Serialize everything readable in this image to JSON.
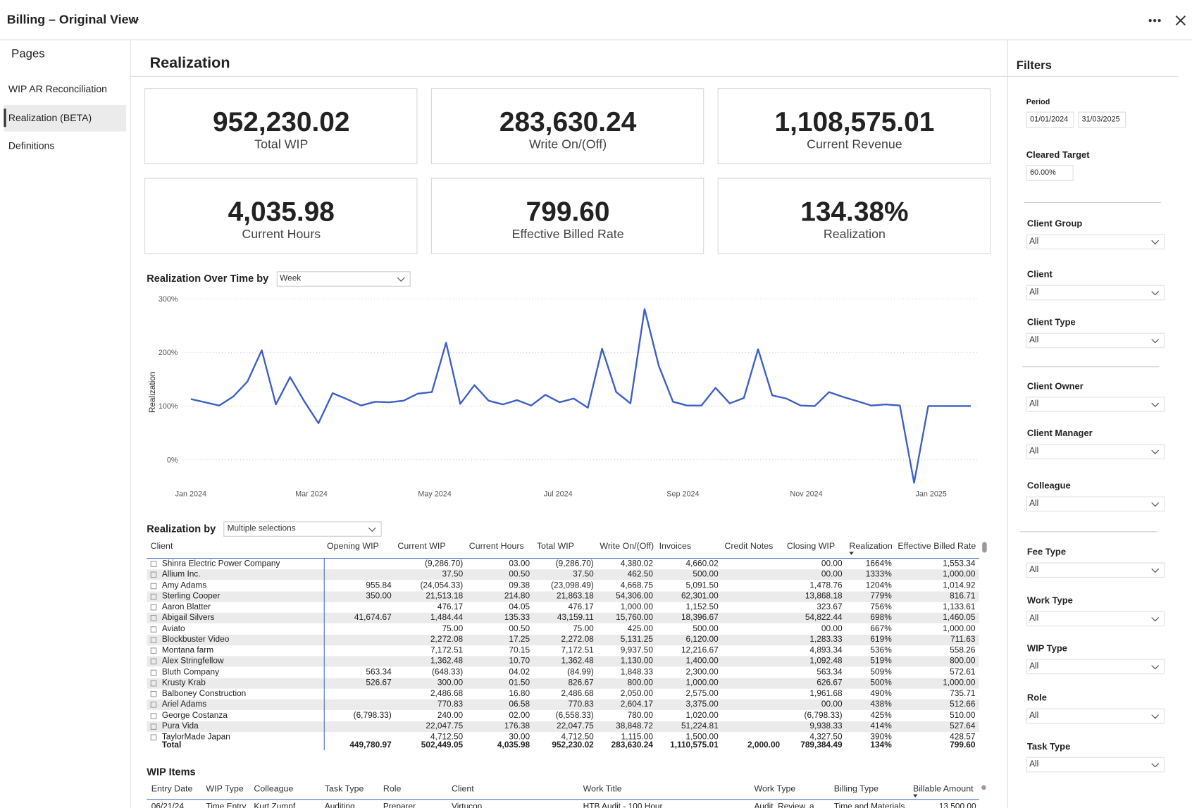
{
  "header": {
    "title": "Billing – Original View"
  },
  "nav": {
    "title": "Pages",
    "items": [
      "WIP AR Reconciliation",
      "Realization (BETA)",
      "Definitions"
    ],
    "active": 1
  },
  "page_title": "Realization",
  "kpis": [
    {
      "value": "952,230.02",
      "label": "Total WIP"
    },
    {
      "value": "283,630.24",
      "label": "Write On/(Off)"
    },
    {
      "value": "1,108,575.01",
      "label": "Current Revenue"
    },
    {
      "value": "4,035.98",
      "label": "Current Hours"
    },
    {
      "value": "799.60",
      "label": "Effective Billed Rate"
    },
    {
      "value": "134.38%",
      "label": "Realization"
    }
  ],
  "chart_data": {
    "type": "line",
    "title": "Realization Over Time by",
    "dropdown": "Week",
    "y_label": "Realization",
    "x": [
      0,
      1,
      2,
      3,
      4,
      5,
      6,
      7,
      8,
      9,
      10,
      11,
      12,
      13,
      14,
      15,
      16,
      17,
      18,
      19,
      20,
      21,
      22,
      23,
      24,
      25,
      26,
      27,
      28,
      29,
      30,
      31,
      32,
      33,
      34,
      35,
      36,
      37,
      38,
      39,
      40,
      41,
      42,
      43,
      44,
      45,
      46,
      47,
      48,
      49,
      50,
      51,
      52,
      53,
      54,
      55
    ],
    "series": [
      {
        "color": "#3d5fc4",
        "values": [
          113,
          107,
          101,
          118,
          146,
          204,
          103,
          154,
          109,
          68,
          124,
          113,
          101,
          108,
          107,
          110,
          123,
          126,
          218,
          104,
          139,
          110,
          103,
          111,
          101,
          121,
          107,
          114,
          97,
          207,
          126,
          105,
          281,
          175,
          108,
          101,
          101,
          134,
          105,
          115,
          206,
          120,
          114,
          101,
          100,
          126,
          117,
          109,
          101,
          103,
          101,
          -43,
          100,
          100,
          100,
          100
        ]
      }
    ],
    "xlim": [
      0,
      55
    ],
    "xticks": [
      {
        "value": 0,
        "label": "Jan 2024"
      },
      {
        "value": 8.5,
        "label": "Mar 2024"
      },
      {
        "value": 17.2,
        "label": "May 2024"
      },
      {
        "value": 25.9,
        "label": "Jul 2024"
      },
      {
        "value": 34.7,
        "label": "Sep 2024"
      },
      {
        "value": 43.4,
        "label": "Nov 2024"
      },
      {
        "value": 52.2,
        "label": "Jan 2025"
      }
    ],
    "ylim": [
      -50,
      310
    ],
    "yticks": [
      {
        "value": 0,
        "label": "0%"
      },
      {
        "value": 100,
        "label": "100%"
      },
      {
        "value": 200,
        "label": "200%"
      },
      {
        "value": 300,
        "label": "300%"
      }
    ],
    "grid": true
  },
  "table": {
    "title": "Realization by",
    "dropdown": "Multiple selections",
    "columns": [
      "Client",
      "Opening WIP",
      "Current WIP",
      "Current Hours",
      "Total WIP",
      "Write On/(Off)",
      "Invoices",
      "Credit Notes",
      "Closing WIP",
      "Realization",
      "Effective Billed Rate"
    ],
    "rows": [
      [
        "Shinra Electric Power Company",
        null,
        "(9,286.70)",
        "03.00",
        "(9,286.70)",
        "4,380.02",
        "4,660.02",
        null,
        "00.00",
        "1664%",
        "1,553.34"
      ],
      [
        "Allium Inc.",
        null,
        "37.50",
        "00.50",
        "37.50",
        "462.50",
        "500.00",
        null,
        "00.00",
        "1333%",
        "1,000.00"
      ],
      [
        "Amy Adams",
        "955.84",
        "(24,054.33)",
        "09.38",
        "(23,098.49)",
        "4,668.75",
        "5,091.50",
        null,
        "1,478.76",
        "1204%",
        "1,014.92"
      ],
      [
        "Sterling Cooper",
        "350.00",
        "21,513.18",
        "214.80",
        "21,863.18",
        "54,306.00",
        "62,301.00",
        null,
        "13,868.18",
        "779%",
        "816.71"
      ],
      [
        "Aaron Blatter",
        null,
        "476.17",
        "04.05",
        "476.17",
        "1,000.00",
        "1,152.50",
        null,
        "323.67",
        "756%",
        "1,133.61"
      ],
      [
        "Abigail Silvers",
        "41,674.67",
        "1,484.44",
        "135.33",
        "43,159.11",
        "15,760.00",
        "18,396.67",
        null,
        "54,822.44",
        "698%",
        "1,460.05"
      ],
      [
        "Aviato",
        null,
        "75.00",
        "00.50",
        "75.00",
        "425.00",
        "500.00",
        null,
        "00.00",
        "667%",
        "1,000.00"
      ],
      [
        "Blockbuster Video",
        null,
        "2,272.08",
        "17.25",
        "2,272.08",
        "5,131.25",
        "6,120.00",
        null,
        "1,283.33",
        "619%",
        "711.63"
      ],
      [
        "Montana farm",
        null,
        "7,172.51",
        "70.15",
        "7,172.51",
        "9,937.50",
        "12,216.67",
        null,
        "4,893.34",
        "536%",
        "558.26"
      ],
      [
        "Alex Stringfellow",
        null,
        "1,362.48",
        "10.70",
        "1,362.48",
        "1,130.00",
        "1,400.00",
        null,
        "1,092.48",
        "519%",
        "800.00"
      ],
      [
        "Bluth Company",
        "563.34",
        "(648.33)",
        "04.02",
        "(84.99)",
        "1,848.33",
        "2,300.00",
        null,
        "563.34",
        "509%",
        "572.61"
      ],
      [
        "Krusty Krab",
        "526.67",
        "300.00",
        "01.50",
        "826.67",
        "800.00",
        "1,000.00",
        null,
        "626.67",
        "500%",
        "1,000.00"
      ],
      [
        "Balboney Construction",
        null,
        "2,486.68",
        "16.80",
        "2,486.68",
        "2,050.00",
        "2,575.00",
        null,
        "1,961.68",
        "490%",
        "735.71"
      ],
      [
        "Ariel Adams",
        null,
        "770.83",
        "06.58",
        "770.83",
        "2,604.17",
        "3,375.00",
        null,
        "00.00",
        "438%",
        "512.66"
      ],
      [
        "George Costanza",
        "(6,798.33)",
        "240.00",
        "02.00",
        "(6,558.33)",
        "780.00",
        "1,020.00",
        null,
        "(6,798.33)",
        "425%",
        "510.00"
      ],
      [
        "Pura Vida",
        null,
        "22,047.75",
        "176.38",
        "22,047.75",
        "38,848.72",
        "51,224.81",
        null,
        "9,938.33",
        "414%",
        "527.64"
      ],
      [
        "TaylorMade Japan",
        null,
        "4,712.50",
        "30.00",
        "4,712.50",
        "1,115.00",
        "1,500.00",
        null,
        "4,327.50",
        "390%",
        "428.57"
      ]
    ],
    "total": [
      "Total",
      "449,780.97",
      "502,449.05",
      "4,035.98",
      "952,230.02",
      "283,630.24",
      "1,110,575.01",
      "2,000.00",
      "789,384.49",
      "134%",
      "799.60"
    ]
  },
  "wip_items": {
    "title": "WIP Items",
    "columns": [
      "Entry Date",
      "WIP Type",
      "Colleague",
      "Task Type",
      "Role",
      "Client",
      "Work Title",
      "Work Type",
      "Billing Type",
      "Billable Amount"
    ],
    "rows": [
      [
        "06/21/24",
        "Time Entry",
        "Kurt Zumpf",
        "Auditing",
        "Preparer",
        "Virtucon",
        "HTB Audit - 100 Hour",
        "Audit, Review, a...",
        "Time and Materials",
        "13,500.00"
      ]
    ]
  },
  "filters": {
    "title": "Filters",
    "period": {
      "label": "Period",
      "start": "01/01/2024",
      "end": "31/03/2025"
    },
    "cleared_target": {
      "label": "Cleared Target",
      "value": "60.00%"
    },
    "dropdowns": [
      {
        "label": "Client Group",
        "value": "All"
      },
      {
        "label": "Client",
        "value": "All"
      },
      {
        "label": "Client Type",
        "value": "All"
      },
      {
        "label": "Client Owner",
        "value": "All"
      },
      {
        "label": "Client Manager",
        "value": "All"
      },
      {
        "label": "Colleague",
        "value": "All"
      },
      {
        "label": "Fee Type",
        "value": "All"
      },
      {
        "label": "Work Type",
        "value": "All"
      },
      {
        "label": "WIP Type",
        "value": "All"
      },
      {
        "label": "Role",
        "value": "All"
      },
      {
        "label": "Task Type",
        "value": "All"
      }
    ]
  }
}
